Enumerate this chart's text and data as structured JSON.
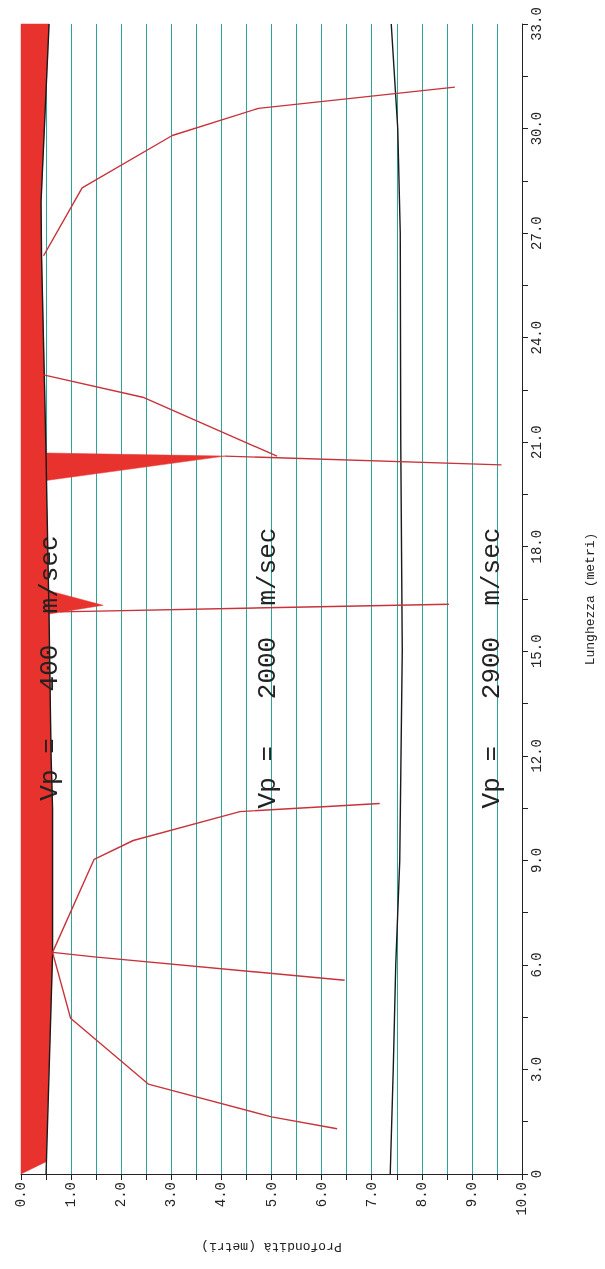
{
  "chart_data": {
    "type": "line",
    "xlabel": "Profondità (metri)",
    "ylabel": "Lunghezza (metri)",
    "xlim": [
      0,
      10
    ],
    "ylim": [
      0,
      33
    ],
    "xticks": [
      {
        "value": 0,
        "label": "0.0"
      },
      {
        "value": 0.5,
        "label": null
      },
      {
        "value": 1,
        "label": "1.0"
      },
      {
        "value": 1.5,
        "label": null
      },
      {
        "value": 2,
        "label": "2.0"
      },
      {
        "value": 2.5,
        "label": null
      },
      {
        "value": 3,
        "label": "3.0"
      },
      {
        "value": 3.5,
        "label": null
      },
      {
        "value": 4,
        "label": "4.0"
      },
      {
        "value": 4.5,
        "label": null
      },
      {
        "value": 5,
        "label": "5.0"
      },
      {
        "value": 5.5,
        "label": null
      },
      {
        "value": 6,
        "label": "6.0"
      },
      {
        "value": 6.5,
        "label": null
      },
      {
        "value": 7,
        "label": "7.0"
      },
      {
        "value": 7.5,
        "label": null
      },
      {
        "value": 8,
        "label": "8.0"
      },
      {
        "value": 8.5,
        "label": null
      },
      {
        "value": 9,
        "label": "9.0"
      },
      {
        "value": 9.5,
        "label": null
      },
      {
        "value": 10,
        "label": "10.0"
      }
    ],
    "yticks": [
      0,
      {
        "value": 1.5,
        "label": null
      },
      {
        "value": 3,
        "label": "3.0"
      },
      {
        "value": 4.5,
        "label": null
      },
      {
        "value": 6,
        "label": "6.0"
      },
      {
        "value": 7.5,
        "label": null
      },
      {
        "value": 9,
        "label": "9.0"
      },
      {
        "value": 10.5,
        "label": null
      },
      {
        "value": 12,
        "label": "12.0"
      },
      {
        "value": 13.5,
        "label": null
      },
      {
        "value": 15,
        "label": "15.0"
      },
      {
        "value": 16.5,
        "label": null
      },
      {
        "value": 18,
        "label": "18.0"
      },
      {
        "value": 19.5,
        "label": null
      },
      {
        "value": 21,
        "label": "21.0"
      },
      {
        "value": 22.5,
        "label": null
      },
      {
        "value": 24,
        "label": "24.0"
      },
      {
        "value": 25.5,
        "label": null
      },
      {
        "value": 27,
        "label": "27.0"
      },
      {
        "value": 28.5,
        "label": null
      },
      {
        "value": 30,
        "label": "30.0"
      },
      {
        "value": 31.5,
        "label": null
      },
      {
        "value": 33,
        "label": "33.0"
      }
    ],
    "grid": "x",
    "marker": "none",
    "line_style": "solid",
    "series": [
      {
        "type": "area",
        "color": "#e8322e",
        "x": [
          0,
          0.5,
          0.63,
          0.63,
          0.6,
          0.56,
          1.64,
          0.55,
          0.5,
          4.07,
          0.5,
          0.47,
          0.41,
          0.4,
          0.56,
          0
        ],
        "values": [
          0,
          0.35,
          6.3,
          10.5,
          12,
          16.07,
          16.32,
          16.74,
          19.9,
          20.6,
          20.69,
          22.6,
          26.35,
          27.9,
          33,
          33
        ]
      },
      {
        "color": "#1a1a1a",
        "x": [
          0.5,
          0.63,
          0.63,
          0.6,
          0.56,
          0.5,
          0.47,
          0.41,
          0.4,
          0.56
        ],
        "values": [
          0,
          6.3,
          10.5,
          12,
          16,
          20.6,
          22.6,
          26.35,
          27.9,
          33
        ]
      },
      {
        "color": "#1a1a1a",
        "x": [
          7.37,
          7.43,
          7.48,
          7.56,
          7.61,
          7.58,
          7.57,
          7.52,
          7.39
        ],
        "values": [
          0,
          3,
          6,
          9,
          15,
          21,
          27,
          30,
          33
        ]
      },
      {
        "color": "#c8323a",
        "x": [
          6.31,
          5.0,
          2.54,
          0.99,
          0.63
        ],
        "values": [
          1.3,
          1.64,
          2.58,
          4.47,
          6.36
        ]
      },
      {
        "color": "#c8323a",
        "x": [
          0.63,
          1.46,
          6.46
        ],
        "values": [
          6.36,
          6.23,
          5.56
        ]
      },
      {
        "color": "#c8323a",
        "x": [
          0.63,
          1.46,
          2.24,
          4.37,
          7.16
        ],
        "values": [
          6.36,
          9.03,
          9.57,
          10.4,
          10.63
        ]
      },
      {
        "color": "#c8323a",
        "x": [
          0.78,
          8.54
        ],
        "values": [
          16.13,
          16.35
        ]
      },
      {
        "color": "#c8323a",
        "x": [
          4.07,
          9.59
        ],
        "values": [
          20.6,
          20.35
        ]
      },
      {
        "color": "#c8323a",
        "x": [
          0.45,
          2.43,
          5.11
        ],
        "values": [
          22.93,
          22.29,
          20.6
        ]
      },
      {
        "color": "#c8323a",
        "x": [
          0.45,
          1.22,
          3.02,
          4.74,
          8.66
        ],
        "values": [
          26.35,
          28.3,
          29.8,
          30.58,
          31.19
        ]
      }
    ],
    "annotations": [
      "Vp =   400  m/sec",
      "Vp =   2000  m/sec",
      "Vp =   2900  m/sec"
    ]
  }
}
